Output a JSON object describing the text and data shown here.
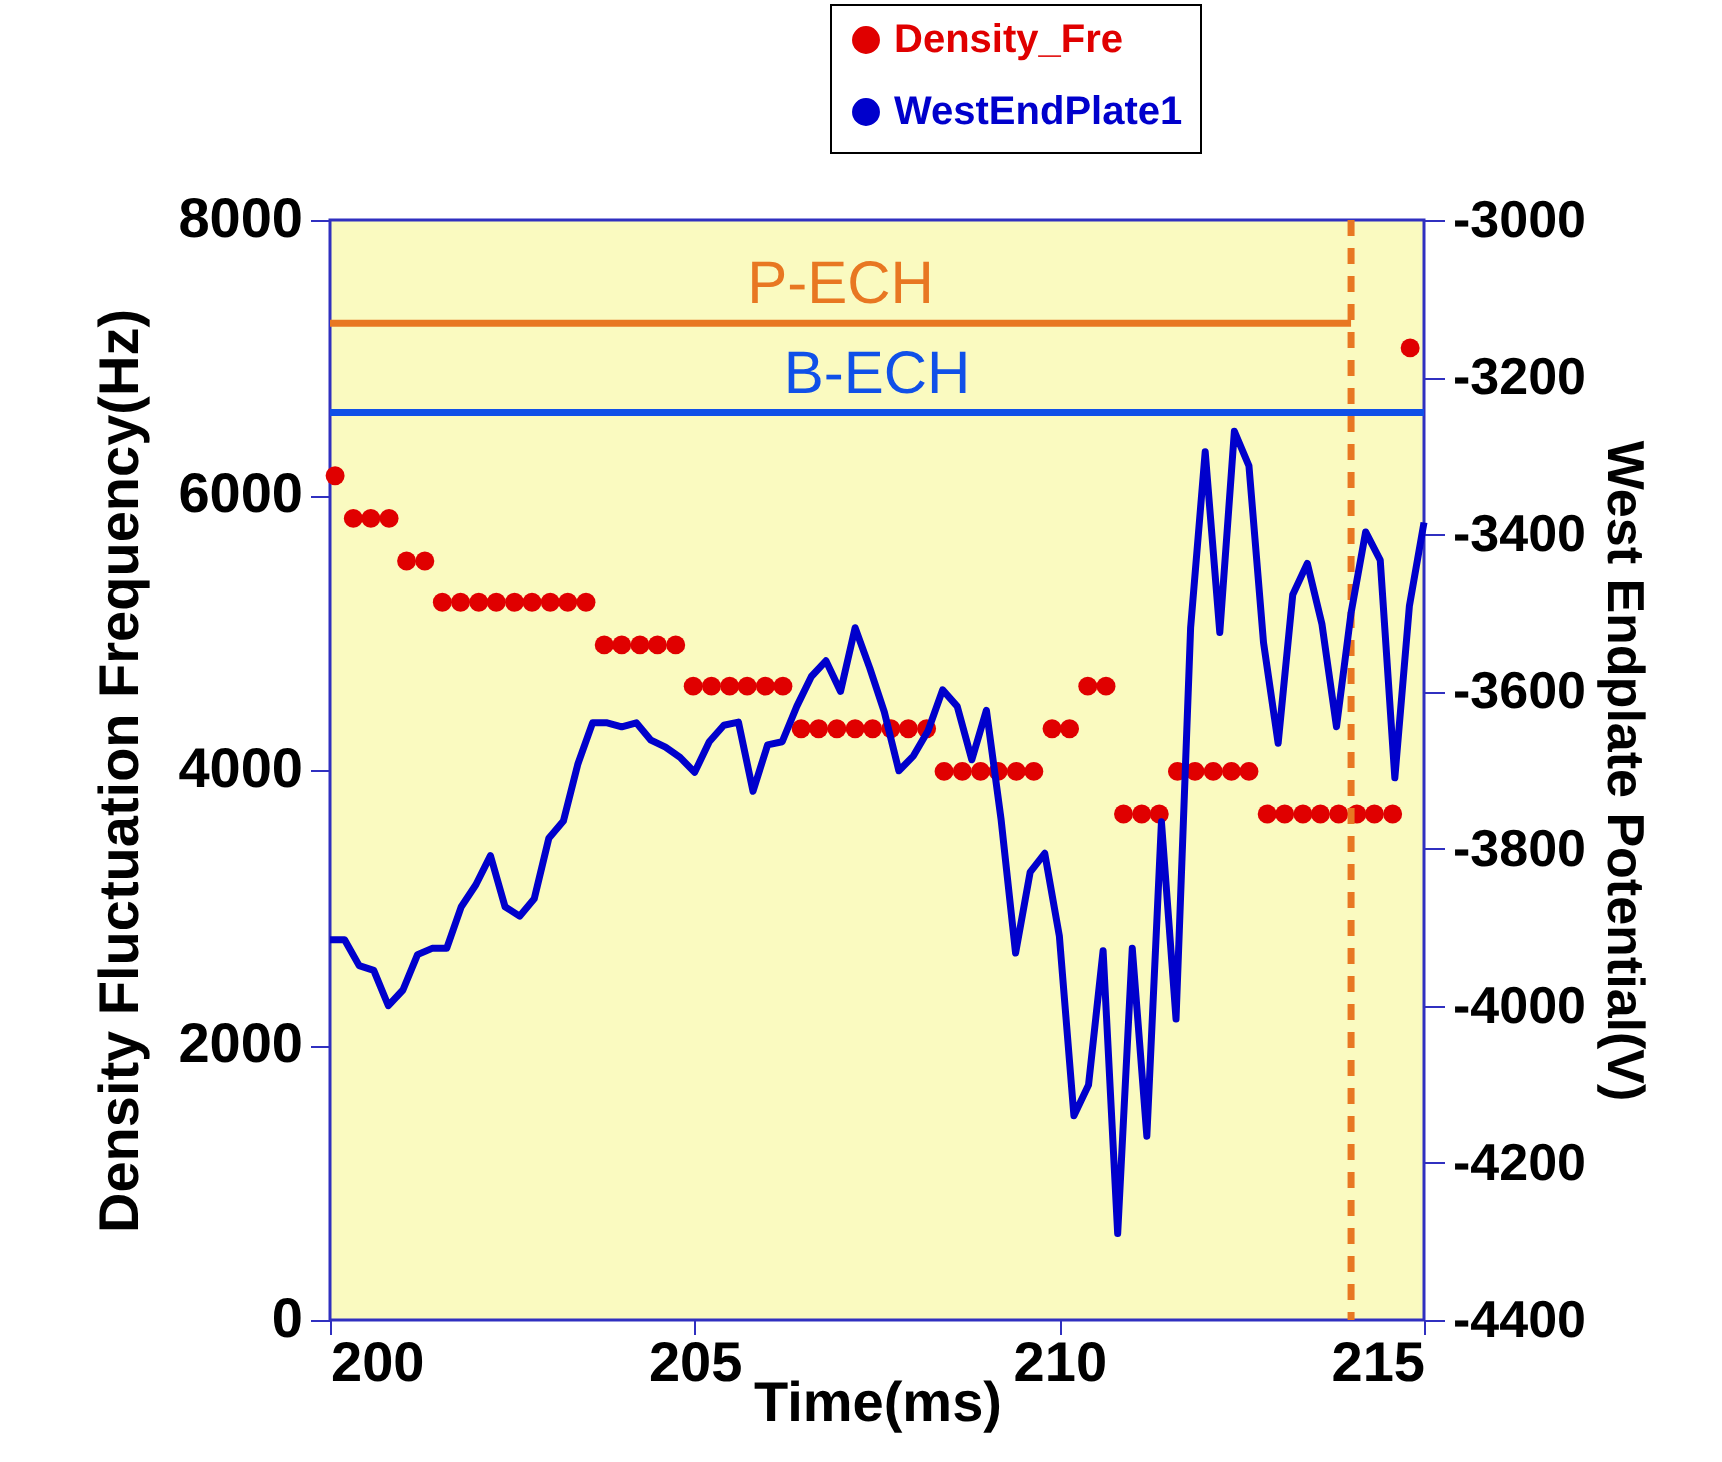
{
  "chart_data": {
    "type": "scatter",
    "xlabel": "Time(ms)",
    "ylabel": "Density Fluctuation Frequency(Hz)",
    "y2label": "West Endplate Potential(V)",
    "xlim": [
      200,
      215
    ],
    "xticks": [
      200,
      205,
      210,
      215
    ],
    "ylim": [
      0,
      8000
    ],
    "yticks": [
      0,
      2000,
      4000,
      6000,
      8000
    ],
    "y2lim": [
      -4400,
      -3000
    ],
    "y2ticks": [
      -4400,
      -4200,
      -4000,
      -3800,
      -3600,
      -3400,
      -3200,
      -3000
    ],
    "grid": false,
    "legend": "top right",
    "series": [
      {
        "name": "Density_Fre",
        "marker": "circle",
        "color": "#e00000",
        "x": [
          200.07,
          200.32,
          200.56,
          200.81,
          201.05,
          201.3,
          201.54,
          201.79,
          202.04,
          202.28,
          202.53,
          202.77,
          203.02,
          203.26,
          203.51,
          203.76,
          204.0,
          204.25,
          204.49,
          204.74,
          204.98,
          205.23,
          205.48,
          205.72,
          205.97,
          206.21,
          206.46,
          206.7,
          206.95,
          207.2,
          207.44,
          207.69,
          207.93,
          208.18,
          208.42,
          208.67,
          208.92,
          209.16,
          209.41,
          209.65,
          209.9,
          210.14,
          210.39,
          210.64,
          210.88,
          211.13,
          211.37,
          211.62,
          211.86,
          212.11,
          212.36,
          212.6,
          212.85,
          213.09,
          213.34,
          213.58,
          213.83,
          214.08,
          214.32,
          214.57,
          214.81
        ],
        "values": [
          6140,
          5830,
          5830,
          5830,
          5520,
          5520,
          5220,
          5220,
          5220,
          5220,
          5220,
          5220,
          5220,
          5220,
          5220,
          4910,
          4910,
          4910,
          4910,
          4910,
          4610,
          4610,
          4610,
          4610,
          4610,
          4610,
          4300,
          4300,
          4300,
          4300,
          4300,
          4300,
          4300,
          4300,
          3990,
          3990,
          3990,
          3990,
          3990,
          3990,
          4300,
          4300,
          4610,
          4610,
          3680,
          3680,
          3680,
          3990,
          3990,
          3990,
          3990,
          3990,
          3680,
          3680,
          3680,
          3680,
          3680,
          3680,
          3680,
          3680,
          7070
        ]
      },
      {
        "name": "WestEndPlate1",
        "type": "line",
        "axis": "y2",
        "color": "#0000cc",
        "x": [
          200.0,
          200.2,
          200.4,
          200.6,
          200.8,
          201.0,
          201.2,
          201.4,
          201.6,
          201.8,
          202.0,
          202.2,
          202.4,
          202.6,
          202.8,
          203.0,
          203.2,
          203.4,
          203.6,
          203.8,
          204.0,
          204.2,
          204.4,
          204.6,
          204.8,
          205.0,
          205.2,
          205.4,
          205.6,
          205.8,
          206.0,
          206.2,
          206.4,
          206.6,
          206.8,
          207.0,
          207.2,
          207.4,
          207.6,
          207.8,
          208.0,
          208.2,
          208.4,
          208.6,
          208.8,
          209.0,
          209.2,
          209.4,
          209.6,
          209.8,
          210.0,
          210.2,
          210.4,
          210.6,
          210.8,
          211.0,
          211.2,
          211.4,
          211.6,
          211.8,
          212.0,
          212.2,
          212.4,
          212.6,
          212.8,
          213.0,
          213.2,
          213.4,
          213.6,
          213.8,
          214.0,
          214.2,
          214.4,
          214.6,
          214.8,
          215.0
        ],
        "values": [
          -3916,
          -3916,
          -3949,
          -3955,
          -4000,
          -3980,
          -3935,
          -3927,
          -3927,
          -3874,
          -3846,
          -3809,
          -3874,
          -3886,
          -3864,
          -3787,
          -3765,
          -3692,
          -3640,
          -3640,
          -3645,
          -3640,
          -3662,
          -3671,
          -3684,
          -3703,
          -3664,
          -3643,
          -3639,
          -3727,
          -3668,
          -3664,
          -3619,
          -3581,
          -3561,
          -3600,
          -3519,
          -3570,
          -3626,
          -3701,
          -3682,
          -3650,
          -3598,
          -3619,
          -3687,
          -3624,
          -3762,
          -3933,
          -3830,
          -3806,
          -3911,
          -4140,
          -4101,
          -3930,
          -4290,
          -3927,
          -4166,
          -3766,
          -4017,
          -3519,
          -3295,
          -3525,
          -3269,
          -3313,
          -3538,
          -3666,
          -3477,
          -3437,
          -3514,
          -3645,
          -3500,
          -3397,
          -3433,
          -3710,
          -3491,
          -3385
        ]
      },
      {
        "type": "line",
        "color": "#e87722",
        "x": [
          200,
          214
        ],
        "values": [
          7250,
          7250
        ]
      },
      {
        "type": "line",
        "color": "#1050e8",
        "x": [
          200,
          215
        ],
        "values": [
          6600,
          6600
        ]
      }
    ],
    "annotations": [
      "P-ECH",
      "B-ECH"
    ],
    "ref_lines": [
      {
        "axis": "x",
        "value": 214,
        "color": "#e87722",
        "line_style": "dashed"
      }
    ]
  }
}
